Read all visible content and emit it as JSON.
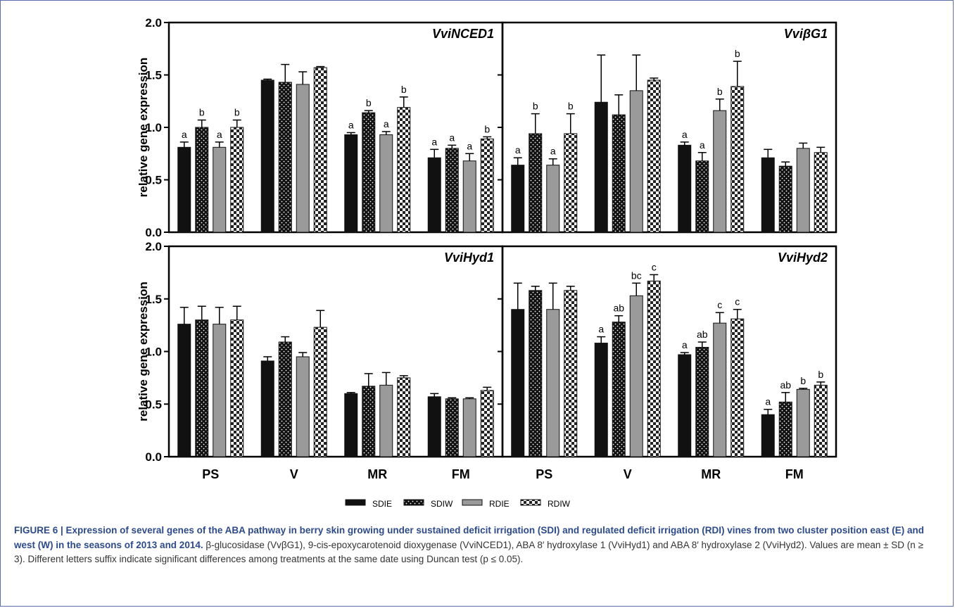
{
  "figure": {
    "ylabel": "relative gene expression",
    "categories": [
      "PS",
      "V",
      "MR",
      "FM"
    ],
    "yticks": [
      "0.0",
      "0.5",
      "1.0",
      "1.5",
      "2.0"
    ],
    "legend": [
      {
        "name": "SDIE",
        "pattern": "solid-black"
      },
      {
        "name": "SDIW",
        "pattern": "dotted-black"
      },
      {
        "name": "RDIE",
        "pattern": "solid-gray"
      },
      {
        "name": "RDIW",
        "pattern": "checker"
      }
    ]
  },
  "chart_data": [
    {
      "type": "bar",
      "title": "VviNCED1",
      "categories": [
        "PS",
        "V",
        "MR",
        "FM"
      ],
      "ylim": [
        0,
        2.0
      ],
      "ylabel": "relative gene expression",
      "series": [
        {
          "name": "SDIE",
          "values": [
            0.81,
            1.45,
            0.93,
            0.71
          ],
          "errors": [
            0.05,
            0.01,
            0.02,
            0.08
          ],
          "letters": [
            "a",
            "",
            "a",
            "a"
          ]
        },
        {
          "name": "SDIW",
          "values": [
            1.0,
            1.43,
            1.14,
            0.8
          ],
          "errors": [
            0.07,
            0.17,
            0.02,
            0.03
          ],
          "letters": [
            "b",
            "",
            "b",
            "a"
          ]
        },
        {
          "name": "RDIE",
          "values": [
            0.81,
            1.41,
            0.93,
            0.68
          ],
          "errors": [
            0.05,
            0.12,
            0.03,
            0.07
          ],
          "letters": [
            "a",
            "",
            "a",
            "a"
          ]
        },
        {
          "name": "RDIW",
          "values": [
            1.0,
            1.57,
            1.19,
            0.89
          ],
          "errors": [
            0.07,
            0.01,
            0.1,
            0.02
          ],
          "letters": [
            "b",
            "",
            "b",
            "b"
          ]
        }
      ]
    },
    {
      "type": "bar",
      "title": "VviβG1",
      "categories": [
        "PS",
        "V",
        "MR",
        "FM"
      ],
      "ylim": [
        0,
        2.0
      ],
      "series": [
        {
          "name": "SDIE",
          "values": [
            0.64,
            1.24,
            0.83,
            0.71
          ],
          "errors": [
            0.07,
            0.45,
            0.03,
            0.08
          ],
          "letters": [
            "a",
            "",
            "a",
            ""
          ]
        },
        {
          "name": "SDIW",
          "values": [
            0.94,
            1.12,
            0.68,
            0.63
          ],
          "errors": [
            0.19,
            0.19,
            0.08,
            0.04
          ],
          "letters": [
            "b",
            "",
            "a",
            ""
          ]
        },
        {
          "name": "RDIE",
          "values": [
            0.64,
            1.35,
            1.16,
            0.8
          ],
          "errors": [
            0.06,
            0.34,
            0.11,
            0.05
          ],
          "letters": [
            "a",
            "",
            "b",
            ""
          ]
        },
        {
          "name": "RDIW",
          "values": [
            0.94,
            1.45,
            1.39,
            0.76
          ],
          "errors": [
            0.19,
            0.02,
            0.24,
            0.05
          ],
          "letters": [
            "b",
            "",
            "b",
            ""
          ]
        }
      ]
    },
    {
      "type": "bar",
      "title": "VviHyd1",
      "categories": [
        "PS",
        "V",
        "MR",
        "FM"
      ],
      "ylim": [
        0,
        2.0
      ],
      "ylabel": "relative gene expression",
      "series": [
        {
          "name": "SDIE",
          "values": [
            1.26,
            0.91,
            0.6,
            0.57
          ],
          "errors": [
            0.16,
            0.04,
            0.01,
            0.03
          ],
          "letters": [
            "",
            "",
            "",
            ""
          ]
        },
        {
          "name": "SDIW",
          "values": [
            1.3,
            1.09,
            0.67,
            0.55
          ],
          "errors": [
            0.13,
            0.05,
            0.12,
            0.01
          ],
          "letters": [
            "",
            "",
            "",
            ""
          ]
        },
        {
          "name": "RDIE",
          "values": [
            1.26,
            0.95,
            0.68,
            0.55
          ],
          "errors": [
            0.16,
            0.04,
            0.12,
            0.01
          ],
          "letters": [
            "",
            "",
            "",
            ""
          ]
        },
        {
          "name": "RDIW",
          "values": [
            1.3,
            1.23,
            0.75,
            0.63
          ],
          "errors": [
            0.13,
            0.16,
            0.02,
            0.03
          ],
          "letters": [
            "",
            "",
            "",
            ""
          ]
        }
      ]
    },
    {
      "type": "bar",
      "title": "VviHyd2",
      "categories": [
        "PS",
        "V",
        "MR",
        "FM"
      ],
      "ylim": [
        0,
        2.0
      ],
      "series": [
        {
          "name": "SDIE",
          "values": [
            1.4,
            1.08,
            0.97,
            0.4
          ],
          "errors": [
            0.25,
            0.06,
            0.02,
            0.05
          ],
          "letters": [
            "",
            "a",
            "a",
            "a"
          ]
        },
        {
          "name": "SDIW",
          "values": [
            1.58,
            1.28,
            1.04,
            0.52
          ],
          "errors": [
            0.04,
            0.06,
            0.05,
            0.09
          ],
          "letters": [
            "",
            "ab",
            "ab",
            "ab"
          ]
        },
        {
          "name": "RDIE",
          "values": [
            1.4,
            1.53,
            1.27,
            0.64
          ],
          "errors": [
            0.25,
            0.12,
            0.1,
            0.01
          ],
          "letters": [
            "",
            "bc",
            "c",
            "b"
          ]
        },
        {
          "name": "RDIW",
          "values": [
            1.58,
            1.67,
            1.31,
            0.68
          ],
          "errors": [
            0.04,
            0.06,
            0.09,
            0.03
          ],
          "letters": [
            "",
            "c",
            "c",
            "b"
          ]
        }
      ]
    }
  ],
  "caption": {
    "label": "FIGURE 6 | Expression of several genes of the ABA pathway in berry skin growing under sustained deficit irrigation (SDI) and regulated deficit irrigation (RDI) vines from two cluster position east (E) and west (W) in the seasons of 2013 and 2014.",
    "text": "β-glucosidase (VvβG1), 9-cis-epoxycarotenoid dioxygenase (VviNCED1), ABA 8′ hydroxylase 1 (VviHyd1) and ABA 8′ hydroxylase 2 (VviHyd2). Values are mean ± SD (n ≥ 3). Different letters suffix indicate significant differences among treatments at the same date using Duncan test (p ≤ 0.05)."
  }
}
